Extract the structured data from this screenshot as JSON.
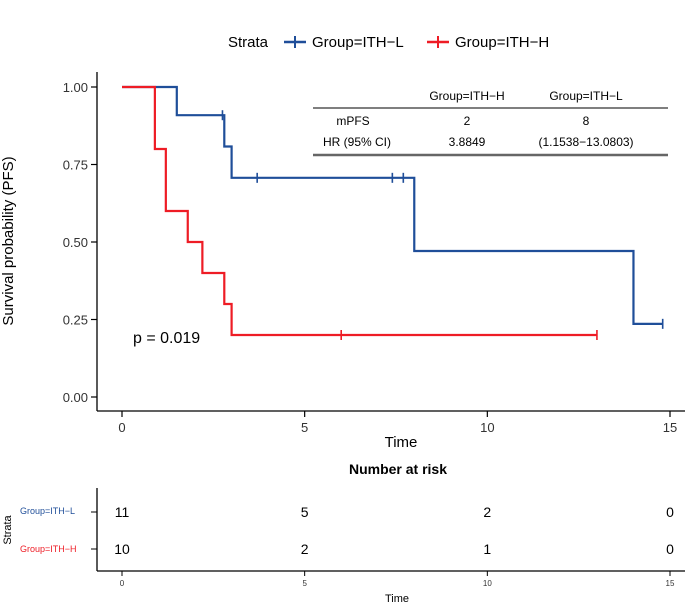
{
  "colors": {
    "ith_l": "#1f4e99",
    "ith_h": "#ee1c25",
    "axis": "#000000",
    "table_rule": "#555555"
  },
  "chart_data": {
    "type": "line",
    "subtype": "kaplan-meier",
    "xlabel": "Time",
    "ylabel": "Survival probability (PFS)",
    "xlim": [
      0,
      15
    ],
    "ylim": [
      0,
      1
    ],
    "xticks": [
      0,
      5,
      10,
      15
    ],
    "yticks": [
      0,
      0.25,
      0.5,
      0.75,
      1
    ],
    "ytick_labels": [
      "0.00",
      "0.25",
      "0.50",
      "0.75",
      "1.00"
    ],
    "legend": {
      "title": "Strata",
      "position": "top"
    },
    "series": [
      {
        "name": "Group=ITH−L",
        "color_key": "ith_l",
        "steps": [
          [
            0,
            1.0
          ],
          [
            1.5,
            0.909
          ],
          [
            2.8,
            0.808
          ],
          [
            3.0,
            0.707
          ],
          [
            8.0,
            0.471
          ],
          [
            14.0,
            0.236
          ],
          [
            14.8,
            0.236
          ]
        ],
        "censor": [
          [
            2.75,
            0.909
          ],
          [
            3.7,
            0.707
          ],
          [
            7.4,
            0.707
          ],
          [
            7.7,
            0.707
          ],
          [
            14.8,
            0.236
          ]
        ]
      },
      {
        "name": "Group=ITH−H",
        "color_key": "ith_h",
        "steps": [
          [
            0,
            1.0
          ],
          [
            0.9,
            0.8
          ],
          [
            1.2,
            0.6
          ],
          [
            1.8,
            0.5
          ],
          [
            2.2,
            0.4
          ],
          [
            2.8,
            0.3
          ],
          [
            3.0,
            0.2
          ],
          [
            13.0,
            0.2
          ]
        ],
        "censor": [
          [
            6.0,
            0.2
          ],
          [
            13.0,
            0.2
          ]
        ]
      }
    ],
    "annotations": {
      "pvalue": "p = 0.019"
    },
    "stats_table": {
      "headers": [
        "",
        "Group=ITH−H",
        "Group=ITH−L"
      ],
      "rows": [
        [
          "mPFS",
          "2",
          "8"
        ],
        [
          "HR (95% CI)",
          "3.8849",
          "(1.1538−13.0803)"
        ]
      ]
    },
    "risk_table": {
      "title": "Number at risk",
      "ylabel": "Strata",
      "xlabel": "Time",
      "times": [
        0,
        5,
        10,
        15
      ],
      "rows": [
        {
          "label": "Group=ITH−L",
          "color_key": "ith_l",
          "counts": [
            11,
            5,
            2,
            0
          ]
        },
        {
          "label": "Group=ITH−H",
          "color_key": "ith_h",
          "counts": [
            10,
            2,
            1,
            0
          ]
        }
      ]
    }
  }
}
